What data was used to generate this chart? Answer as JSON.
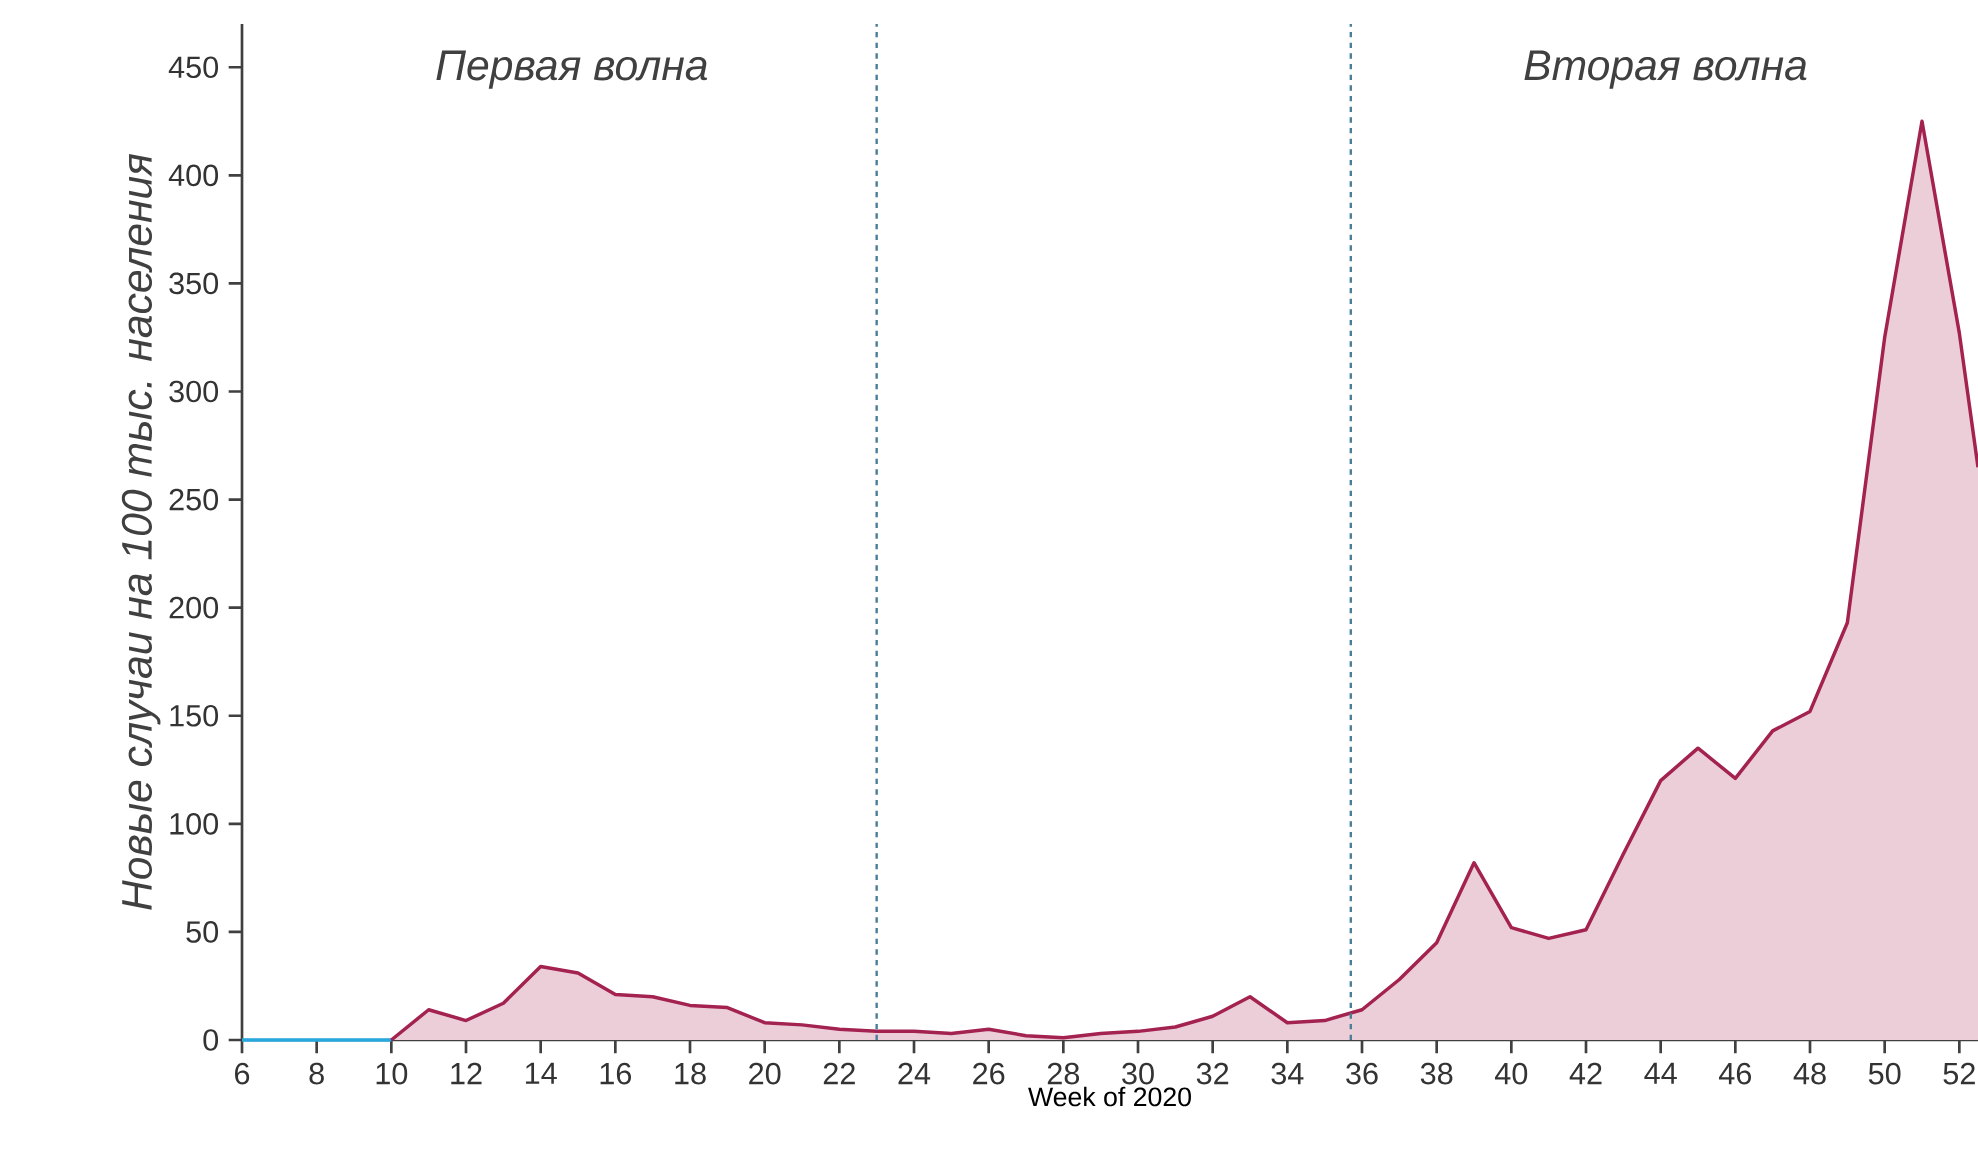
{
  "chart_data": {
    "type": "area",
    "xlabel": "Week of 2020",
    "ylabel": "Новые случаи на 100 тыс. населения",
    "annotations": [
      "Первая волна",
      "Вторая волна"
    ],
    "xlim": [
      6,
      52.5
    ],
    "xticks": [
      6,
      8,
      10,
      12,
      14,
      16,
      18,
      20,
      22,
      24,
      26,
      28,
      30,
      32,
      34,
      36,
      38,
      40,
      42,
      44,
      46,
      48,
      50,
      52
    ],
    "ylim": [
      0,
      470
    ],
    "yticks": [
      0,
      50,
      100,
      150,
      200,
      250,
      300,
      350,
      400,
      450
    ],
    "series": [
      {
        "type": "line",
        "color": "#29a8e0",
        "x": [
          6,
          7,
          8,
          9,
          10
        ],
        "values": [
          0,
          0,
          0,
          0,
          0
        ]
      },
      {
        "color": "#a3224f",
        "x": [
          10,
          11,
          12,
          13,
          14,
          15,
          16,
          17,
          18,
          19,
          20,
          21,
          22,
          23,
          24,
          25,
          26,
          27,
          28,
          29,
          30,
          31,
          32,
          33,
          34,
          35,
          36,
          37,
          38,
          39,
          40,
          41,
          42,
          43,
          44,
          45,
          46,
          47,
          48,
          49,
          50,
          51,
          52,
          52.5
        ],
        "values": [
          0,
          14,
          9,
          17,
          34,
          31,
          21,
          20,
          16,
          15,
          8,
          7,
          5,
          4,
          4,
          3,
          5,
          2,
          1,
          3,
          4,
          6,
          11,
          20,
          8,
          9,
          14,
          28,
          45,
          82,
          52,
          47,
          51,
          86,
          120,
          135,
          121,
          143,
          152,
          193,
          325,
          425,
          327,
          265
        ]
      }
    ],
    "ref_lines": [
      {
        "axis": "x",
        "value": 23,
        "color": "#4a7f96",
        "line_style": "dotted"
      },
      {
        "axis": "x",
        "value": 35.7,
        "color": "#4a7f96",
        "line_style": "dotted"
      }
    ]
  }
}
